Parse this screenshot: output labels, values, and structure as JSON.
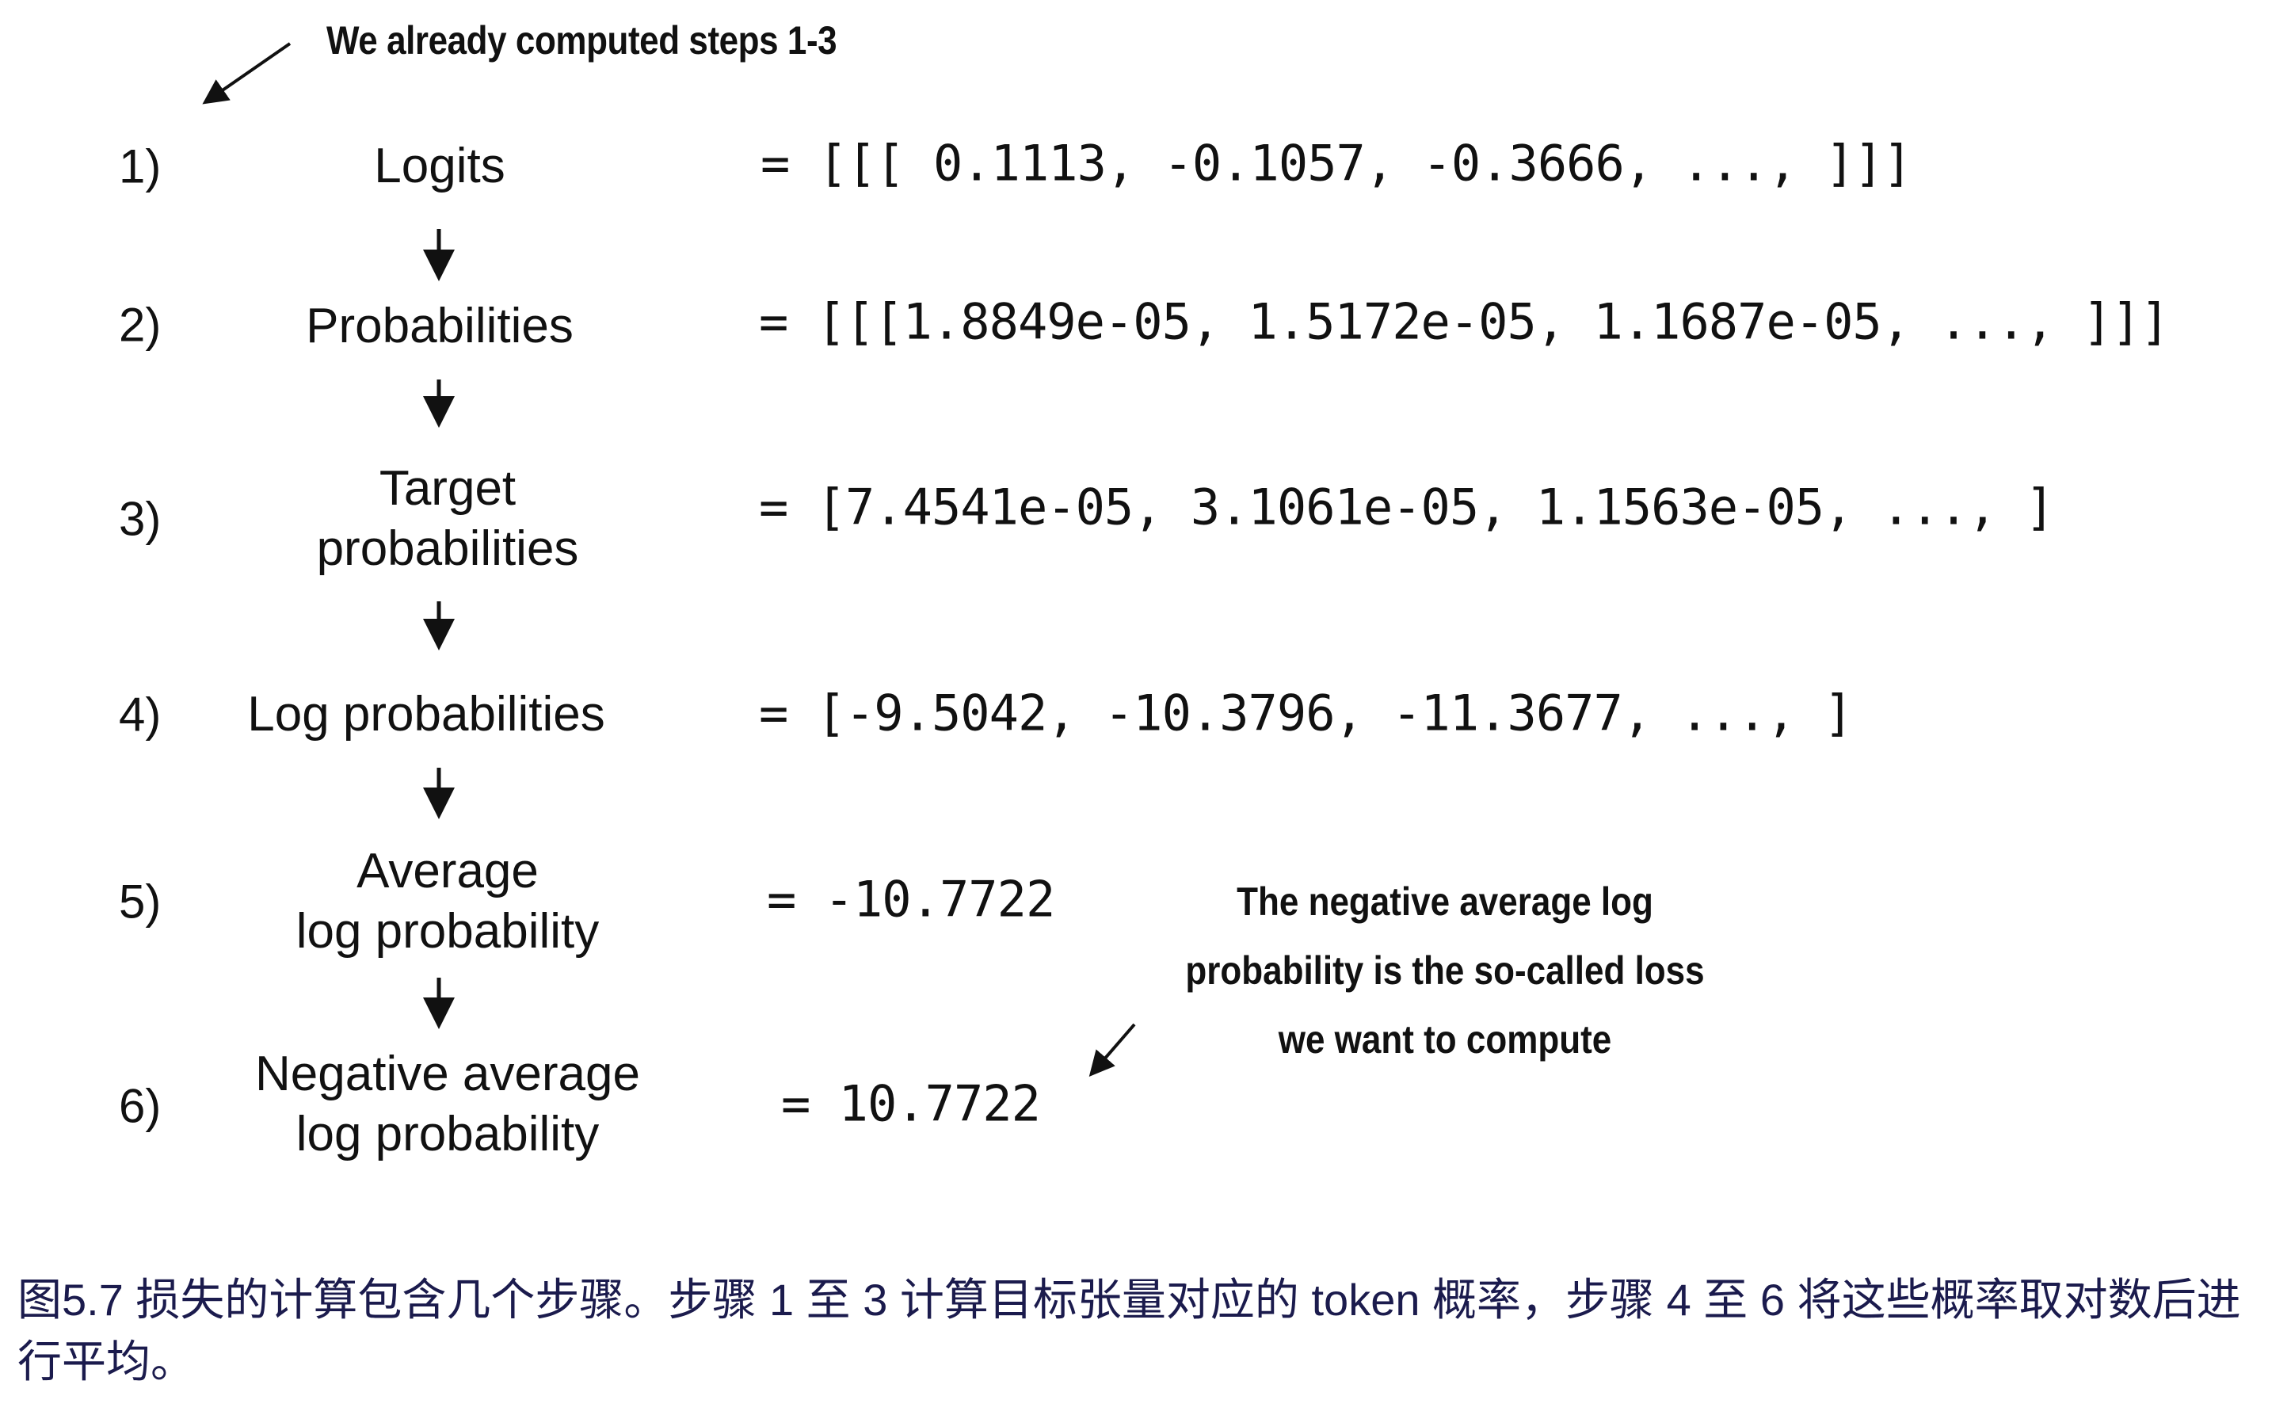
{
  "annotation_top": "We already computed steps 1-3",
  "annotation_right": [
    "The negative average log",
    "probability is the so-called loss",
    "we want to compute"
  ],
  "steps": [
    {
      "num": "1)",
      "label": [
        "Logits"
      ],
      "value": "= [[[ 0.1113, -0.1057, -0.3666,  ..., ]]]"
    },
    {
      "num": "2)",
      "label": [
        "Probabilities"
      ],
      "value": "= [[[1.8849e-05, 1.5172e-05, 1.1687e-05,  ..., ]]]"
    },
    {
      "num": "3)",
      "label": [
        "Target",
        "probabilities"
      ],
      "value": "= [7.4541e-05, 3.1061e-05, 1.1563e-05, ..., ]"
    },
    {
      "num": "4)",
      "label": [
        "Log probabilities"
      ],
      "value": "= [-9.5042, -10.3796, -11.3677, ..., ]"
    },
    {
      "num": "5)",
      "label": [
        "Average",
        "log probability"
      ],
      "value": "= -10.7722"
    },
    {
      "num": "6)",
      "label": [
        "Negative average",
        "log probability"
      ],
      "value": "= 10.7722"
    }
  ],
  "caption": "图5.7 损失的计算包含几个步骤。步骤 1 至 3 计算目标张量对应的 token 概率，步骤 4 至 6 将这些概率取对数后进行平均。",
  "colors": {
    "caption": "#1b1b4d",
    "text": "#111111"
  }
}
